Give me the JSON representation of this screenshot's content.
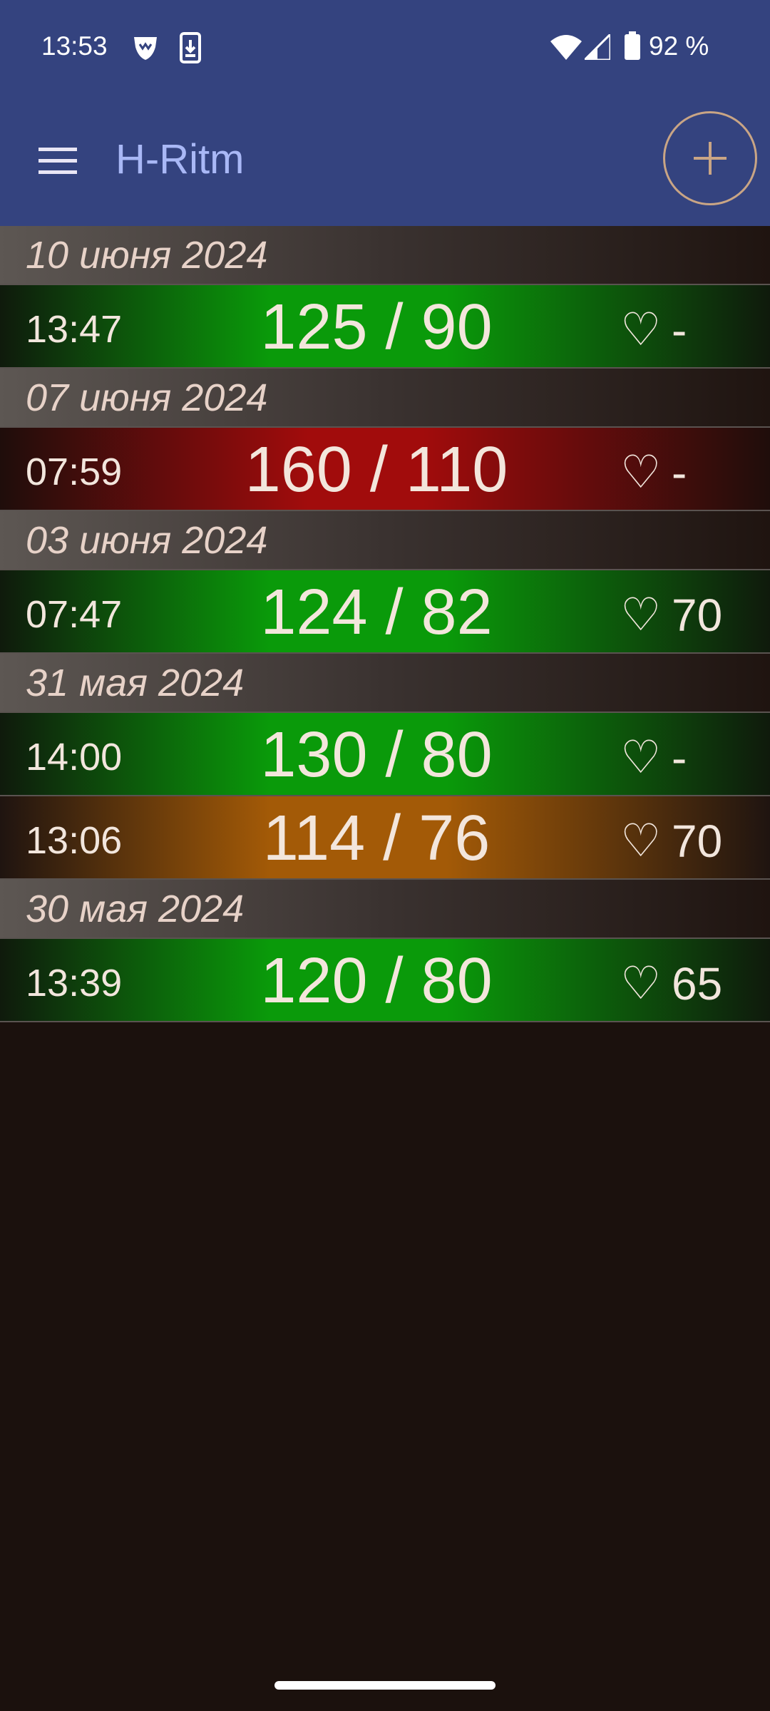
{
  "status_bar": {
    "time": "13:53",
    "battery_percent": "92 %",
    "icons": [
      "shield-app-icon",
      "download-notification-icon",
      "wifi-icon",
      "cellular-signal-icon",
      "battery-icon"
    ]
  },
  "app_bar": {
    "title": "H-Ritm",
    "menu_icon": "hamburger-menu-icon",
    "add_icon": "plus-icon",
    "background_color": "#34437f",
    "title_color": "#a9b8f6"
  },
  "colors": {
    "normal": "#0a9a0a",
    "high": "#a10c0c",
    "elevated": "#a35a07",
    "background": "#1b110d"
  },
  "groups": [
    {
      "date": "10 июня 2024",
      "entries": [
        {
          "time": "13:47",
          "bp": "125 / 90",
          "heart": "♡",
          "pulse": "-",
          "status": "green"
        }
      ]
    },
    {
      "date": "07 июня 2024",
      "entries": [
        {
          "time": "07:59",
          "bp": "160 / 110",
          "heart": "♡",
          "pulse": "-",
          "status": "red"
        }
      ]
    },
    {
      "date": "03 июня 2024",
      "entries": [
        {
          "time": "07:47",
          "bp": "124 / 82",
          "heart": "♡",
          "pulse": "70",
          "status": "green"
        }
      ]
    },
    {
      "date": "31 мая 2024",
      "entries": [
        {
          "time": "14:00",
          "bp": "130 / 80",
          "heart": "♡",
          "pulse": "-",
          "status": "green"
        },
        {
          "time": "13:06",
          "bp": "114 / 76",
          "heart": "♡",
          "pulse": "70",
          "status": "orange"
        }
      ]
    },
    {
      "date": "30 мая 2024",
      "entries": [
        {
          "time": "13:39",
          "bp": "120 / 80",
          "heart": "♡",
          "pulse": "65",
          "status": "green"
        }
      ]
    }
  ]
}
